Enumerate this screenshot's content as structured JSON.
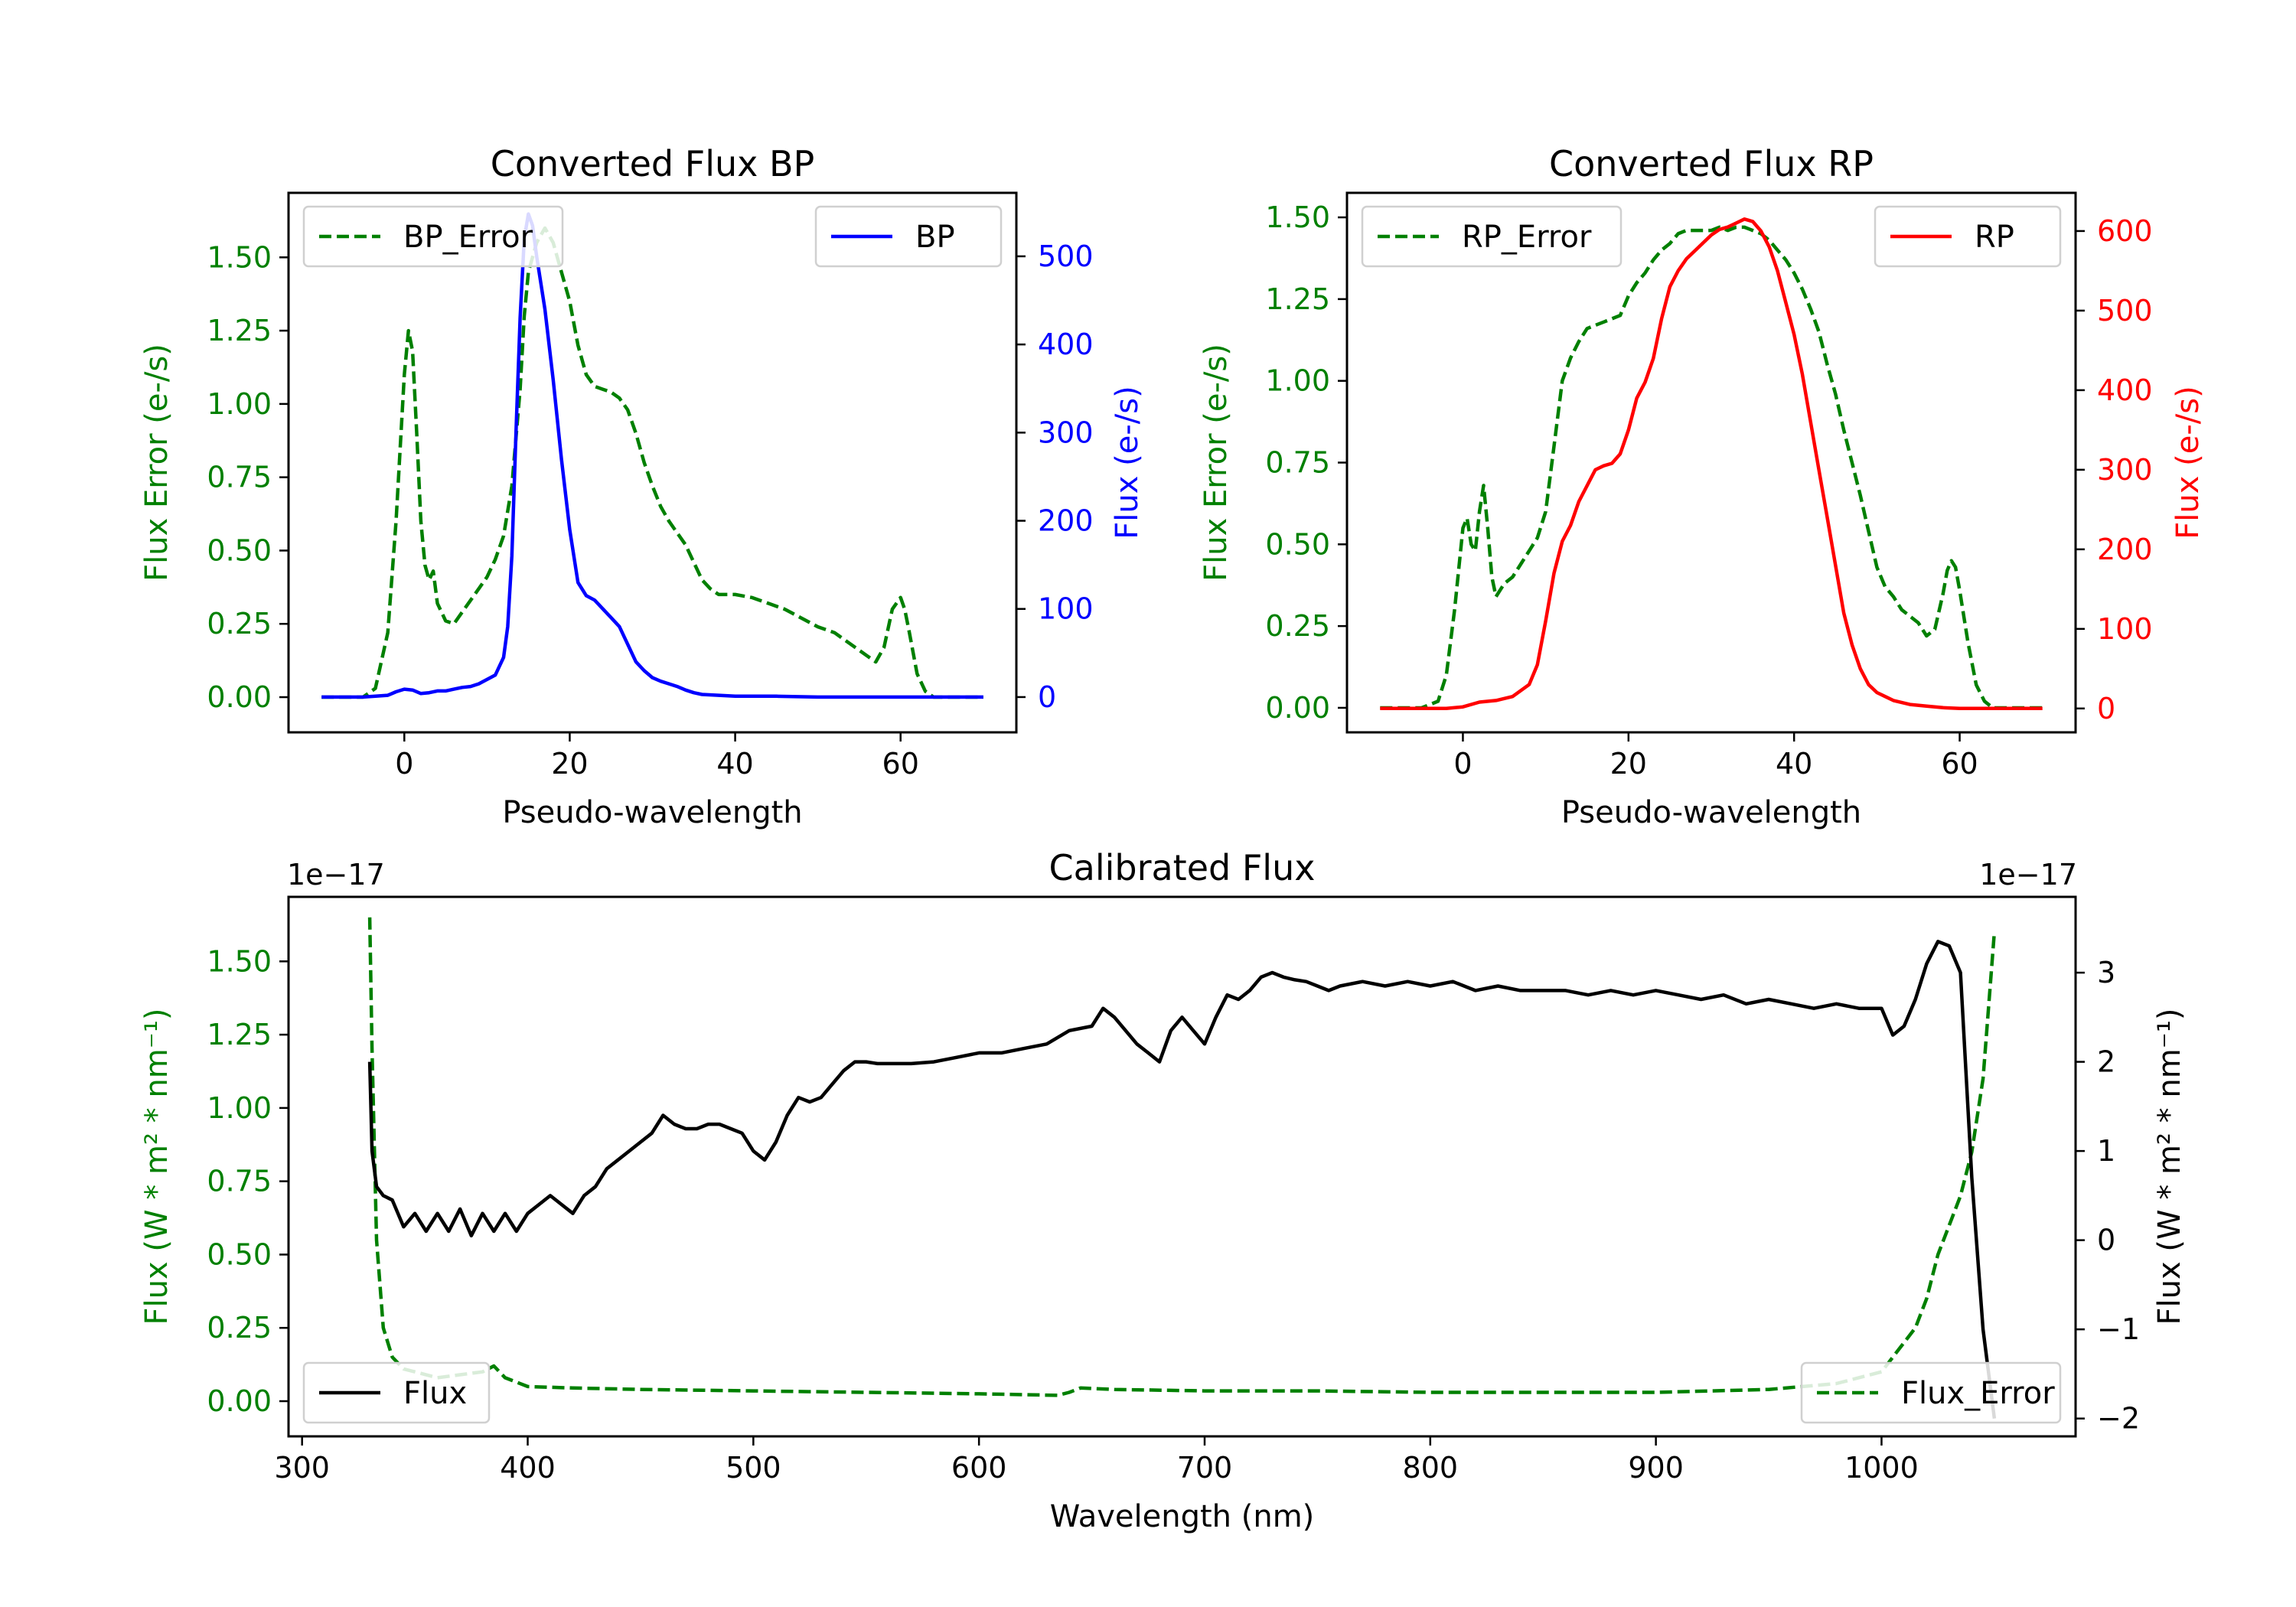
{
  "chart_data": [
    {
      "type": "line",
      "title": "Converted Flux BP",
      "xlabel": "Pseudo-wavelength",
      "ylabel_left": "Flux Error (e-/s)",
      "ylabel_right": "Flux (e-/s)",
      "xlim": [
        -14,
        74
      ],
      "ylim_left": [
        -0.12,
        1.72
      ],
      "ylim_right": [
        -40,
        572
      ],
      "xticks": [
        "0",
        "20",
        "40",
        "60"
      ],
      "yticks_left": [
        "0.00",
        "0.25",
        "0.50",
        "0.75",
        "1.00",
        "1.25",
        "1.50"
      ],
      "yticks_right": [
        "0",
        "100",
        "200",
        "300",
        "400",
        "500"
      ],
      "colors": {
        "error": "#008000",
        "flux": "#0000ff",
        "left_axis": "#008000",
        "right_axis": "#0000ff"
      },
      "series": [
        {
          "name": "BP_Error",
          "axis": "left",
          "style": "dashed",
          "legend_pos": "upper-left",
          "x": [
            -10,
            -5,
            -3.5,
            -2,
            -1,
            0,
            0.5,
            1,
            1.5,
            2,
            2.5,
            3,
            3.5,
            4,
            5,
            6,
            7,
            8,
            9,
            10,
            11,
            12,
            13,
            14,
            14.5,
            15,
            15.5,
            16,
            17,
            18,
            19,
            20,
            21,
            22,
            23,
            24,
            25,
            26,
            27,
            28,
            29,
            30,
            31,
            32,
            33,
            34,
            35,
            36,
            37,
            38,
            40,
            42,
            44,
            46,
            48,
            50,
            52,
            54,
            56,
            57,
            58,
            59,
            60,
            60.5,
            61,
            62,
            63,
            64,
            66,
            70
          ],
          "values": [
            0,
            0,
            0.03,
            0.22,
            0.6,
            1.1,
            1.25,
            1.18,
            0.9,
            0.6,
            0.45,
            0.4,
            0.43,
            0.32,
            0.26,
            0.25,
            0.29,
            0.33,
            0.37,
            0.41,
            0.47,
            0.55,
            0.72,
            1.05,
            1.3,
            1.45,
            1.5,
            1.55,
            1.6,
            1.55,
            1.45,
            1.35,
            1.2,
            1.1,
            1.06,
            1.05,
            1.04,
            1.02,
            0.98,
            0.9,
            0.8,
            0.72,
            0.65,
            0.6,
            0.56,
            0.52,
            0.46,
            0.4,
            0.37,
            0.35,
            0.35,
            0.34,
            0.32,
            0.3,
            0.27,
            0.24,
            0.22,
            0.18,
            0.14,
            0.12,
            0.17,
            0.3,
            0.34,
            0.3,
            0.23,
            0.08,
            0.02,
            0,
            0,
            0
          ]
        },
        {
          "name": "BP",
          "axis": "right",
          "style": "solid",
          "legend_pos": "upper-right",
          "x": [
            -10,
            -5,
            -2,
            -1,
            0,
            1,
            2,
            3,
            4,
            5,
            6,
            7,
            8,
            9,
            10,
            11,
            12,
            12.5,
            13,
            13.5,
            14,
            14.5,
            15,
            15.5,
            16,
            17,
            18,
            19,
            20,
            21,
            22,
            23,
            24,
            25,
            26,
            27,
            28,
            29,
            30,
            31,
            32,
            33,
            34,
            35,
            36,
            38,
            40,
            45,
            50,
            55,
            60,
            65,
            70
          ],
          "values": [
            0,
            0,
            2,
            6,
            9,
            8,
            4,
            5,
            7,
            7,
            9,
            11,
            12,
            15,
            20,
            25,
            45,
            80,
            160,
            300,
            430,
            520,
            548,
            535,
            500,
            440,
            360,
            270,
            190,
            130,
            115,
            110,
            100,
            90,
            80,
            60,
            40,
            30,
            22,
            18,
            15,
            12,
            8,
            5,
            3,
            2,
            1,
            1,
            0,
            0,
            0,
            0,
            0
          ]
        }
      ]
    },
    {
      "type": "line",
      "title": "Converted Flux RP",
      "xlabel": "Pseudo-wavelength",
      "ylabel_left": "Flux Error (e-/s)",
      "ylabel_right": "Flux (e-/s)",
      "xlim": [
        -14,
        74
      ],
      "ylim_left": [
        -0.075,
        1.575
      ],
      "ylim_right": [
        -30,
        648
      ],
      "xticks": [
        "0",
        "20",
        "40",
        "60"
      ],
      "yticks_left": [
        "0.00",
        "0.25",
        "0.50",
        "0.75",
        "1.00",
        "1.25",
        "1.50"
      ],
      "yticks_right": [
        "0",
        "100",
        "200",
        "300",
        "400",
        "500",
        "600"
      ],
      "colors": {
        "error": "#008000",
        "flux": "#ff0000",
        "left_axis": "#008000",
        "right_axis": "#ff0000"
      },
      "series": [
        {
          "name": "RP_Error",
          "axis": "left",
          "style": "dashed",
          "legend_pos": "upper-left",
          "x": [
            -10,
            -5,
            -3,
            -2,
            -1,
            0,
            0.5,
            1,
            1.5,
            2,
            2.5,
            3,
            3.5,
            4,
            5,
            6,
            7,
            8,
            9,
            10,
            11,
            12,
            13,
            14,
            15,
            16,
            17,
            18,
            19,
            20,
            21,
            22,
            23,
            24,
            25,
            26,
            27,
            28,
            29,
            30,
            31,
            32,
            33,
            34,
            35,
            36,
            37,
            38,
            39,
            40,
            41,
            42,
            43,
            44,
            45,
            46,
            47,
            48,
            49,
            50,
            51,
            52,
            53,
            54,
            55,
            56,
            57,
            58,
            58.5,
            59,
            59.5,
            60,
            61,
            62,
            63,
            64,
            66,
            70
          ],
          "values": [
            0,
            0,
            0.02,
            0.1,
            0.3,
            0.55,
            0.58,
            0.5,
            0.48,
            0.6,
            0.68,
            0.55,
            0.4,
            0.34,
            0.38,
            0.4,
            0.44,
            0.48,
            0.52,
            0.6,
            0.8,
            1.0,
            1.07,
            1.12,
            1.16,
            1.17,
            1.18,
            1.19,
            1.2,
            1.26,
            1.3,
            1.33,
            1.37,
            1.4,
            1.42,
            1.45,
            1.46,
            1.46,
            1.46,
            1.46,
            1.47,
            1.46,
            1.47,
            1.47,
            1.46,
            1.45,
            1.43,
            1.4,
            1.37,
            1.33,
            1.28,
            1.22,
            1.15,
            1.05,
            0.96,
            0.85,
            0.75,
            0.65,
            0.54,
            0.43,
            0.37,
            0.34,
            0.3,
            0.28,
            0.26,
            0.22,
            0.24,
            0.35,
            0.42,
            0.45,
            0.43,
            0.36,
            0.2,
            0.07,
            0.02,
            0,
            0,
            0
          ]
        },
        {
          "name": "RP",
          "axis": "right",
          "style": "solid",
          "legend_pos": "upper-right",
          "x": [
            -10,
            -5,
            -2,
            0,
            2,
            4,
            6,
            8,
            9,
            10,
            11,
            12,
            13,
            14,
            15,
            16,
            17,
            18,
            19,
            20,
            21,
            22,
            23,
            24,
            25,
            26,
            27,
            28,
            29,
            30,
            31,
            32,
            33,
            34,
            35,
            36,
            37,
            38,
            39,
            40,
            41,
            42,
            43,
            44,
            45,
            46,
            47,
            48,
            49,
            50,
            51,
            52,
            54,
            56,
            58,
            60,
            65,
            70
          ],
          "values": [
            0,
            0,
            0,
            2,
            8,
            10,
            15,
            30,
            55,
            110,
            170,
            210,
            230,
            260,
            280,
            300,
            305,
            308,
            320,
            350,
            390,
            410,
            440,
            490,
            530,
            550,
            565,
            575,
            585,
            595,
            602,
            605,
            610,
            615,
            612,
            600,
            580,
            550,
            510,
            470,
            420,
            360,
            300,
            240,
            180,
            120,
            80,
            50,
            30,
            20,
            15,
            10,
            5,
            3,
            1,
            0,
            0,
            0
          ]
        }
      ]
    },
    {
      "type": "line",
      "title": "Calibrated Flux",
      "xlabel": "Wavelength (nm)",
      "ylabel_left": "Flux (W * m² * nm⁻¹)",
      "ylabel_right": "Flux (W * m² * nm⁻¹)",
      "offset_left": "1e−17",
      "offset_right": "1e−17",
      "xlim": [
        294,
        1086
      ],
      "ylim_left": [
        -0.12,
        1.72
      ],
      "ylim_right": [
        -2.2,
        3.85
      ],
      "xticks": [
        "300",
        "400",
        "500",
        "600",
        "700",
        "800",
        "900",
        "1000"
      ],
      "yticks_left": [
        "0.00",
        "0.25",
        "0.50",
        "0.75",
        "1.00",
        "1.25",
        "1.50"
      ],
      "yticks_right": [
        "−2",
        "−1",
        "0",
        "1",
        "2",
        "3"
      ],
      "colors": {
        "error": "#008000",
        "flux": "#000000",
        "left_axis": "#008000",
        "right_axis": "#000000"
      },
      "series": [
        {
          "name": "Flux_Error",
          "axis": "left",
          "style": "dashed",
          "legend_pos": "lower-right",
          "x": [
            330,
            331,
            333,
            336,
            340,
            345,
            350,
            360,
            370,
            380,
            385,
            390,
            400,
            420,
            450,
            500,
            550,
            600,
            635,
            640,
            645,
            660,
            700,
            750,
            800,
            850,
            900,
            950,
            980,
            1000,
            1005,
            1010,
            1015,
            1020,
            1025,
            1030,
            1035,
            1040,
            1045,
            1050
          ],
          "values": [
            1.65,
            1.2,
            0.55,
            0.25,
            0.15,
            0.11,
            0.1,
            0.08,
            0.09,
            0.1,
            0.12,
            0.08,
            0.05,
            0.045,
            0.04,
            0.035,
            0.03,
            0.025,
            0.02,
            0.03,
            0.045,
            0.04,
            0.035,
            0.035,
            0.03,
            0.03,
            0.03,
            0.04,
            0.06,
            0.1,
            0.15,
            0.2,
            0.25,
            0.35,
            0.5,
            0.6,
            0.7,
            0.85,
            1.1,
            1.6
          ]
        },
        {
          "name": "Flux",
          "axis": "right",
          "style": "solid",
          "legend_pos": "lower-left",
          "x": [
            330,
            331,
            333,
            336,
            340,
            345,
            350,
            355,
            360,
            365,
            370,
            375,
            380,
            385,
            390,
            395,
            400,
            405,
            410,
            415,
            420,
            425,
            430,
            435,
            440,
            445,
            450,
            455,
            460,
            465,
            470,
            475,
            480,
            485,
            490,
            495,
            500,
            505,
            510,
            515,
            520,
            525,
            530,
            535,
            540,
            545,
            550,
            555,
            560,
            565,
            570,
            580,
            590,
            600,
            610,
            620,
            630,
            640,
            650,
            655,
            660,
            665,
            670,
            675,
            680,
            685,
            690,
            695,
            700,
            705,
            710,
            715,
            720,
            725,
            730,
            735,
            740,
            745,
            750,
            755,
            760,
            770,
            780,
            790,
            800,
            810,
            820,
            830,
            840,
            850,
            860,
            870,
            880,
            890,
            900,
            910,
            920,
            930,
            940,
            950,
            960,
            970,
            980,
            990,
            1000,
            1005,
            1010,
            1015,
            1020,
            1025,
            1030,
            1035,
            1040,
            1045,
            1050
          ],
          "values": [
            2.0,
            1.0,
            0.6,
            0.5,
            0.45,
            0.15,
            0.3,
            0.1,
            0.3,
            0.1,
            0.35,
            0.05,
            0.3,
            0.1,
            0.3,
            0.1,
            0.3,
            0.4,
            0.5,
            0.4,
            0.3,
            0.5,
            0.6,
            0.8,
            0.9,
            1.0,
            1.1,
            1.2,
            1.4,
            1.3,
            1.25,
            1.25,
            1.3,
            1.3,
            1.25,
            1.2,
            1.0,
            0.9,
            1.1,
            1.4,
            1.6,
            1.55,
            1.6,
            1.75,
            1.9,
            2.0,
            2.0,
            1.98,
            1.98,
            1.98,
            1.98,
            2.0,
            2.05,
            2.1,
            2.1,
            2.15,
            2.2,
            2.35,
            2.4,
            2.6,
            2.5,
            2.35,
            2.2,
            2.1,
            2.0,
            2.35,
            2.5,
            2.35,
            2.2,
            2.5,
            2.75,
            2.7,
            2.8,
            2.95,
            3.0,
            2.95,
            2.92,
            2.9,
            2.85,
            2.8,
            2.85,
            2.9,
            2.85,
            2.9,
            2.85,
            2.9,
            2.8,
            2.85,
            2.8,
            2.8,
            2.8,
            2.75,
            2.8,
            2.75,
            2.8,
            2.75,
            2.7,
            2.75,
            2.65,
            2.7,
            2.65,
            2.6,
            2.65,
            2.6,
            2.6,
            2.3,
            2.4,
            2.7,
            3.1,
            3.35,
            3.3,
            3.0,
            0.7,
            -1.0,
            -2.0
          ]
        }
      ]
    }
  ]
}
